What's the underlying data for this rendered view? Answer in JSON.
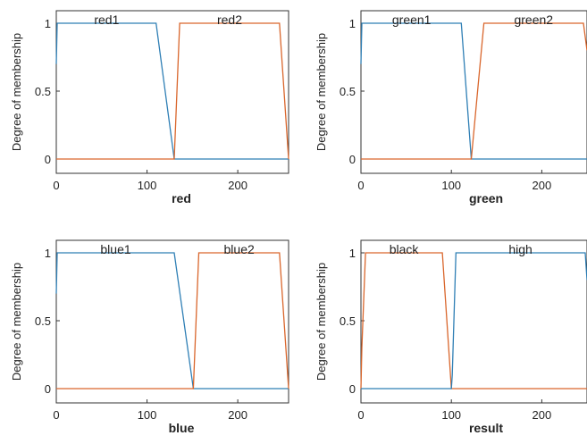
{
  "chart_data": [
    {
      "type": "line",
      "xlabel": "red",
      "ylabel": "Degree of membership",
      "xlim": [
        0,
        256
      ],
      "ylim": [
        0,
        1
      ],
      "xticks": [
        0,
        100,
        200
      ],
      "yticks": [
        0,
        0.5,
        1
      ],
      "grid": false,
      "series": [
        {
          "name": "red1",
          "color": "#2f7fb5",
          "x": [
            0,
            1,
            110,
            130,
            256
          ],
          "y": [
            0.7,
            1,
            1,
            0,
            0
          ]
        },
        {
          "name": "red2",
          "color": "#d9662c",
          "x": [
            0,
            130,
            136,
            246,
            256
          ],
          "y": [
            0,
            0,
            1,
            1,
            0
          ]
        }
      ]
    },
    {
      "type": "line",
      "xlabel": "green",
      "ylabel": "Degree of membership",
      "xlim": [
        0,
        250
      ],
      "ylim": [
        0,
        1
      ],
      "xticks": [
        0,
        100,
        200
      ],
      "yticks": [
        0,
        0.5,
        1
      ],
      "grid": false,
      "series": [
        {
          "name": "green1",
          "color": "#2f7fb5",
          "x": [
            0,
            1,
            111,
            122,
            250
          ],
          "y": [
            0.7,
            1,
            1,
            0,
            0
          ]
        },
        {
          "name": "green2",
          "color": "#d9662c",
          "x": [
            0,
            122,
            136,
            246,
            250
          ],
          "y": [
            0,
            0,
            1,
            1,
            0.8
          ]
        }
      ]
    },
    {
      "type": "line",
      "xlabel": "blue",
      "ylabel": "Degree of membership",
      "xlim": [
        0,
        256
      ],
      "ylim": [
        0,
        1
      ],
      "xticks": [
        0,
        100,
        200
      ],
      "yticks": [
        0,
        0.5,
        1
      ],
      "grid": false,
      "series": [
        {
          "name": "blue1",
          "color": "#2f7fb5",
          "x": [
            0,
            1,
            130,
            151,
            256
          ],
          "y": [
            0.7,
            1,
            1,
            0,
            0
          ]
        },
        {
          "name": "blue2",
          "color": "#d9662c",
          "x": [
            0,
            151,
            157,
            246,
            256
          ],
          "y": [
            0,
            0,
            1,
            1,
            0
          ]
        }
      ]
    },
    {
      "type": "line",
      "xlabel": "result",
      "ylabel": "Degree of membership",
      "xlim": [
        0,
        250
      ],
      "ylim": [
        0,
        1
      ],
      "xticks": [
        0,
        100,
        200
      ],
      "yticks": [
        0,
        0.5,
        1
      ],
      "grid": false,
      "series": [
        {
          "name": "black",
          "color": "#d9662c",
          "x": [
            0,
            1,
            5,
            90,
            100,
            250
          ],
          "y": [
            0,
            0.3,
            1,
            1,
            0,
            0
          ]
        },
        {
          "name": "high",
          "color": "#2f7fb5",
          "x": [
            0,
            100,
            101,
            105,
            248,
            250
          ],
          "y": [
            0,
            0,
            0.1,
            1,
            1,
            0.8
          ]
        }
      ]
    }
  ]
}
